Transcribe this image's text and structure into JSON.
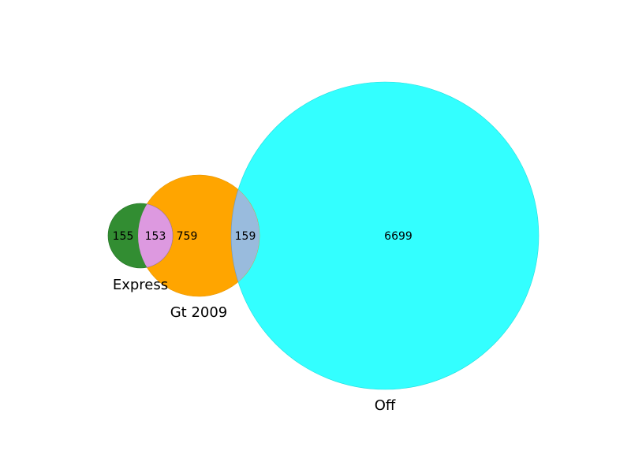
{
  "sets": [
    {
      "name": "Express",
      "color": "#008000"
    },
    {
      "name": "Gt 2009",
      "color": "#ffa500"
    },
    {
      "name": "Off",
      "color": "#00ffff"
    }
  ],
  "regions": {
    "express_only": "155",
    "express_gt2009": "153",
    "gt2009_only": "759",
    "gt2009_off": "159",
    "off_only": "6699"
  },
  "colors": {
    "express": "#2e8b2e",
    "gt2009": "#ffa500",
    "off": "#33ffff",
    "express_gt2009_overlap": "#dd99e0",
    "gt2009_off_overlap": "#99bbdd"
  }
}
